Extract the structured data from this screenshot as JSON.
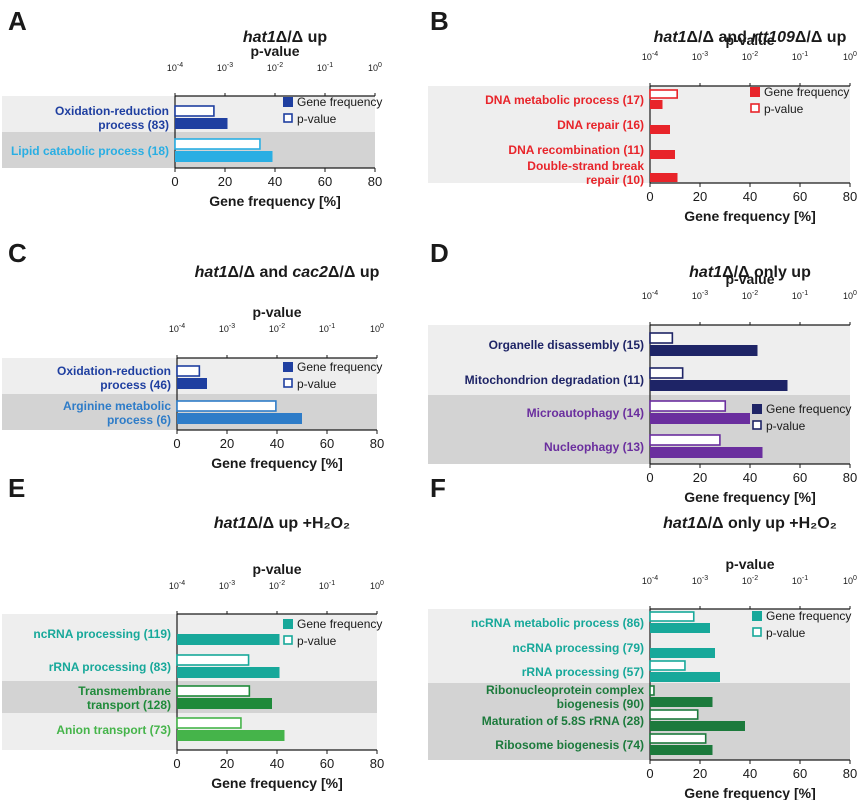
{
  "chart_data": [
    {
      "letter": "A",
      "title_italic": "hat1",
      "title_rest": "Δ/Δ up",
      "type": "bar",
      "orientation": "horizontal",
      "xlabel": "Gene frequency [%]",
      "x2label": "p-value",
      "xlim": [
        0,
        80
      ],
      "x_ticks": [
        "0",
        "20",
        "40",
        "60",
        "80"
      ],
      "p_scale": "log",
      "p_range": [
        0.0001,
        1
      ],
      "p_ticks": [
        "10-4",
        "10-3",
        "10-2",
        "10-1",
        "100"
      ],
      "legend": [
        "Gene frequency",
        "p-value"
      ],
      "categories": [
        {
          "label": "Oxidation-reduction process (83)",
          "lines": [
            "Oxidation-reduction",
            "process (83)"
          ],
          "gene_frequency": 21,
          "p_value": 0.0006,
          "color": "#1f3fa0",
          "bg": "light"
        },
        {
          "label": "Lipid catabolic process (18)",
          "lines": [
            "Lipid catabolic process (18)"
          ],
          "gene_frequency": 39,
          "p_value": 0.005,
          "color": "#29aee3",
          "bg": "dark"
        }
      ]
    },
    {
      "letter": "B",
      "title_italic": "hat1",
      "title_rest": "Δ/Δ and ",
      "title_italic2": "rtt109",
      "title_rest2": "Δ/Δ up",
      "type": "bar",
      "orientation": "horizontal",
      "xlabel": "Gene frequency [%]",
      "x2label": "p-value",
      "xlim": [
        0,
        80
      ],
      "x_ticks": [
        "0",
        "20",
        "40",
        "60",
        "80"
      ],
      "p_scale": "log",
      "p_range": [
        0.0001,
        1
      ],
      "p_ticks": [
        "10-4",
        "10-3",
        "10-2",
        "10-1",
        "100"
      ],
      "legend": [
        "Gene frequency",
        "p-value"
      ],
      "categories": [
        {
          "label": "DNA metabolic process (17)",
          "lines": [
            "DNA metabolic process (17)"
          ],
          "gene_frequency": 5,
          "p_value": 0.00035,
          "color": "#e8242a",
          "bg": "light"
        },
        {
          "label": "DNA repair (16)",
          "lines": [
            "DNA repair (16)"
          ],
          "gene_frequency": 8,
          "p_value": null,
          "color": "#e8242a",
          "bg": "light"
        },
        {
          "label": "DNA recombination (11)",
          "lines": [
            "DNA recombination (11)"
          ],
          "gene_frequency": 10,
          "p_value": null,
          "color": "#e8242a",
          "bg": "light"
        },
        {
          "label": "Double-strand break repair (10)",
          "lines": [
            "Double-strand break",
            "repair (10)"
          ],
          "gene_frequency": 11,
          "p_value": null,
          "color": "#e8242a",
          "bg": "light"
        }
      ]
    },
    {
      "letter": "C",
      "title_italic": "hat1",
      "title_rest": "Δ/Δ and ",
      "title_italic2": "cac2",
      "title_rest2": "Δ/Δ up",
      "type": "bar",
      "orientation": "horizontal",
      "xlabel": "Gene frequency [%]",
      "x2label": "p-value",
      "xlim": [
        0,
        80
      ],
      "x_ticks": [
        "0",
        "20",
        "40",
        "60",
        "80"
      ],
      "p_scale": "log",
      "p_range": [
        0.0001,
        1
      ],
      "p_ticks": [
        "10-4",
        "10-3",
        "10-2",
        "10-1",
        "100"
      ],
      "legend": [
        "Gene frequency",
        "p-value"
      ],
      "categories": [
        {
          "label": "Oxidation-reduction process (46)",
          "lines": [
            "Oxidation-reduction",
            "process (46)"
          ],
          "gene_frequency": 12,
          "p_value": 0.00028,
          "color": "#1f3fa0",
          "bg": "light"
        },
        {
          "label": "Arginine metabolic process (6)",
          "lines": [
            "Arginine metabolic",
            "process (6)"
          ],
          "gene_frequency": 50,
          "p_value": 0.0095,
          "color": "#2e7cc8",
          "bg": "dark"
        }
      ]
    },
    {
      "letter": "D",
      "title_italic": "hat1",
      "title_rest": "Δ/Δ only up",
      "type": "bar",
      "orientation": "horizontal",
      "xlabel": "Gene frequency [%]",
      "x2label": "p-value",
      "xlim": [
        0,
        80
      ],
      "x_ticks": [
        "0",
        "20",
        "40",
        "60",
        "80"
      ],
      "p_scale": "log",
      "p_range": [
        0.0001,
        1
      ],
      "p_ticks": [
        "10-4",
        "10-3",
        "10-2",
        "10-1",
        "100"
      ],
      "legend": [
        "Gene frequency",
        "p-value"
      ],
      "categories": [
        {
          "label": "Organelle disassembly (15)",
          "lines": [
            "Organelle disassembly (15)"
          ],
          "gene_frequency": 43,
          "p_value": 0.00028,
          "color": "#1e2466",
          "bg": "light"
        },
        {
          "label": "Mitochondrion degradation (11)",
          "lines": [
            "Mitochondrion degradation (11)"
          ],
          "gene_frequency": 55,
          "p_value": 0.00045,
          "color": "#1e2466",
          "bg": "light"
        },
        {
          "label": "Microautophagy (14)",
          "lines": [
            "Microautophagy (14)"
          ],
          "gene_frequency": 40,
          "p_value": 0.0032,
          "color": "#6a2e9e",
          "bg": "dark"
        },
        {
          "label": "Nucleophagy (13)",
          "lines": [
            "Nucleophagy (13)"
          ],
          "gene_frequency": 45,
          "p_value": 0.0025,
          "color": "#6a2e9e",
          "bg": "dark"
        }
      ]
    },
    {
      "letter": "E",
      "title_italic": "hat1",
      "title_rest": "Δ/Δ up +H₂O₂",
      "type": "bar",
      "orientation": "horizontal",
      "xlabel": "Gene frequency [%]",
      "x2label": "p-value",
      "xlim": [
        0,
        80
      ],
      "x_ticks": [
        "0",
        "20",
        "40",
        "60",
        "80"
      ],
      "p_scale": "log",
      "p_range": [
        0.0001,
        1
      ],
      "p_ticks": [
        "10-4",
        "10-3",
        "10-2",
        "10-1",
        "100"
      ],
      "legend": [
        "Gene frequency",
        "p-value"
      ],
      "categories": [
        {
          "label": "ncRNA processing (119)",
          "lines": [
            "ncRNA processing (119)"
          ],
          "gene_frequency": 41,
          "p_value": null,
          "color": "#17a89a",
          "bg": "light"
        },
        {
          "label": "rRNA processing (83)",
          "lines": [
            "rRNA processing (83)"
          ],
          "gene_frequency": 41,
          "p_value": 0.0027,
          "color": "#17a89a",
          "bg": "light"
        },
        {
          "label": "Transmembrane transport (128)",
          "lines": [
            "Transmembrane",
            "transport (128)"
          ],
          "gene_frequency": 38,
          "p_value": 0.0028,
          "color": "#1f8a3a",
          "bg": "dark"
        },
        {
          "label": "Anion transport (73)",
          "lines": [
            "Anion transport (73)"
          ],
          "gene_frequency": 43,
          "p_value": 0.0019,
          "color": "#45b44a",
          "bg": "light"
        }
      ]
    },
    {
      "letter": "F",
      "title_italic": "hat1",
      "title_rest": "Δ/Δ only up +H₂O₂",
      "type": "bar",
      "orientation": "horizontal",
      "xlabel": "Gene frequency [%]",
      "x2label": "p-value",
      "xlim": [
        0,
        80
      ],
      "x_ticks": [
        "0",
        "20",
        "40",
        "60",
        "80"
      ],
      "p_scale": "log",
      "p_range": [
        0.0001,
        1
      ],
      "p_ticks": [
        "10-4",
        "10-3",
        "10-2",
        "10-1",
        "100"
      ],
      "legend": [
        "Gene frequency",
        "p-value"
      ],
      "categories": [
        {
          "label": "ncRNA metabolic process (86)",
          "lines": [
            "ncRNA metabolic process (86)"
          ],
          "gene_frequency": 24,
          "p_value": 0.00075,
          "color": "#17a89a",
          "bg": "light"
        },
        {
          "label": "ncRNA processing (79)",
          "lines": [
            "ncRNA processing (79)"
          ],
          "gene_frequency": 26,
          "p_value": null,
          "color": "#17a89a",
          "bg": "light"
        },
        {
          "label": "rRNA processing (57)",
          "lines": [
            "rRNA processing (57)"
          ],
          "gene_frequency": 28,
          "p_value": 0.0005,
          "color": "#17a89a",
          "bg": "light"
        },
        {
          "label": "Ribonucleoprotein complex biogenesis (90)",
          "lines": [
            "Ribonucleoprotein complex",
            "biogenesis (90)"
          ],
          "gene_frequency": 25,
          "p_value": 0.00012,
          "color": "#1c7a3c",
          "bg": "dark"
        },
        {
          "label": "Maturation of 5.8S rRNA (28)",
          "lines": [
            "Maturation of 5.8S rRNA (28)"
          ],
          "gene_frequency": 38,
          "p_value": 0.0009,
          "color": "#1c7a3c",
          "bg": "dark"
        },
        {
          "label": "Ribosome biogenesis (74)",
          "lines": [
            "Ribosome biogenesis (74)"
          ],
          "gene_frequency": 25,
          "p_value": 0.0013,
          "color": "#1c7a3c",
          "bg": "dark"
        }
      ]
    }
  ],
  "colors": {
    "bg_light": "#eeeeee",
    "bg_dark": "#d3d3d3",
    "axis": "#1a1a1a"
  }
}
